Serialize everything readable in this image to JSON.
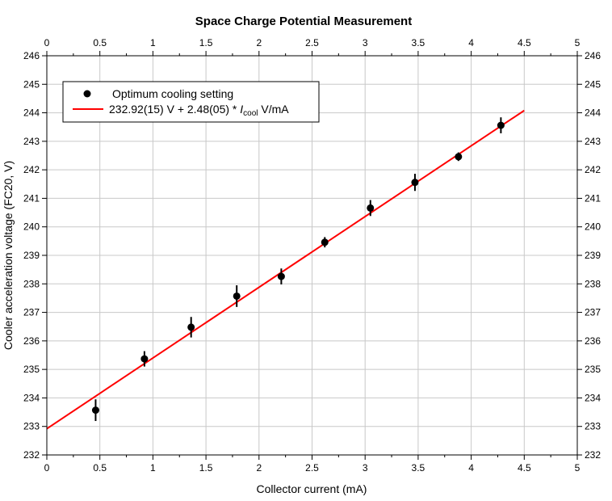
{
  "chart_data": {
    "type": "scatter",
    "title": "Space Charge Potential Measurement",
    "xlabel": "Collector current (mA)",
    "ylabel": "Cooler acceleration voltage (FC20, V)",
    "xlim": [
      0,
      5
    ],
    "ylim": [
      232,
      246
    ],
    "x_ticks": [
      "0",
      "0.5",
      "1",
      "1.5",
      "2",
      "2.5",
      "3",
      "3.5",
      "4",
      "4.5",
      "5"
    ],
    "y_ticks": [
      "232",
      "233",
      "234",
      "235",
      "236",
      "237",
      "238",
      "239",
      "240",
      "241",
      "242",
      "243",
      "244",
      "245",
      "246"
    ],
    "grid": true,
    "legend_position": "top-left",
    "series": [
      {
        "name": "Optimum cooling setting",
        "kind": "points-with-error-bars",
        "color": "#000000",
        "x": [
          0.46,
          0.92,
          1.36,
          1.79,
          2.21,
          2.62,
          3.05,
          3.47,
          3.88,
          4.28
        ],
        "y": [
          233.57,
          235.37,
          236.48,
          237.57,
          238.26,
          239.46,
          240.66,
          241.56,
          242.46,
          243.56
        ],
        "yerr": [
          0.38,
          0.27,
          0.36,
          0.38,
          0.28,
          0.18,
          0.28,
          0.3,
          0.15,
          0.28
        ]
      },
      {
        "name_parts": [
          "232.92(15) V + 2.48(05) * ",
          "I",
          "cool",
          " V/mA"
        ],
        "kind": "fit-line",
        "color": "#ff0000",
        "intercept": 232.92,
        "slope": 2.48,
        "x_range": [
          0,
          4.5
        ]
      }
    ]
  }
}
